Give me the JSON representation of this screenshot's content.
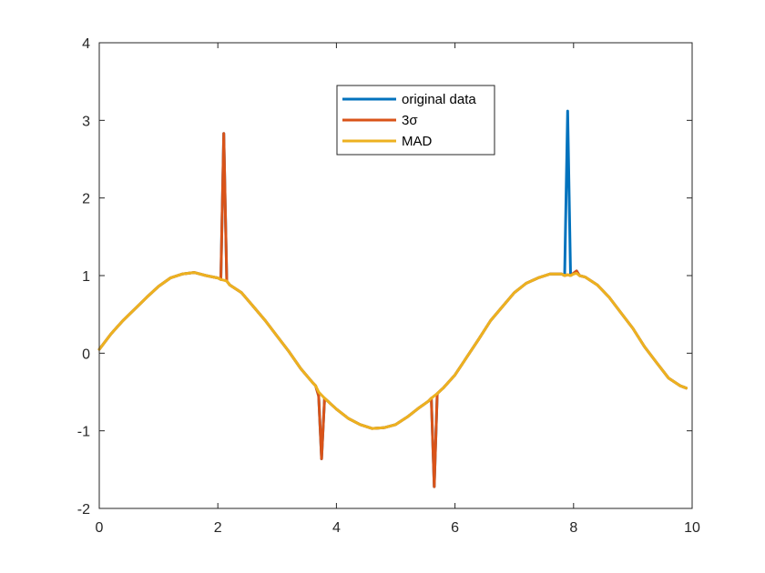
{
  "chart_data": {
    "type": "line",
    "title": "",
    "xlabel": "",
    "ylabel": "",
    "xlim": [
      0,
      10
    ],
    "ylim": [
      -2,
      4
    ],
    "xticks": [
      "0",
      "2",
      "4",
      "6",
      "8",
      "10"
    ],
    "yticks": [
      "-2",
      "-1",
      "0",
      "1",
      "2",
      "3",
      "4"
    ],
    "grid": false,
    "legend_position": "top-center",
    "x": [
      0,
      0.2,
      0.4,
      0.6,
      0.8,
      1.0,
      1.2,
      1.4,
      1.6,
      1.8,
      2.0,
      2.05,
      2.1,
      2.15,
      2.2,
      2.4,
      2.6,
      2.8,
      3.0,
      3.2,
      3.4,
      3.6,
      3.65,
      3.7,
      3.75,
      3.8,
      4.0,
      4.2,
      4.4,
      4.6,
      4.8,
      5.0,
      5.2,
      5.4,
      5.55,
      5.6,
      5.65,
      5.7,
      5.8,
      6.0,
      6.2,
      6.4,
      6.6,
      6.8,
      7.0,
      7.2,
      7.4,
      7.6,
      7.8,
      7.85,
      7.9,
      7.95,
      8.0,
      8.05,
      8.1,
      8.2,
      8.4,
      8.6,
      8.8,
      9.0,
      9.2,
      9.4,
      9.6,
      9.8,
      9.9
    ],
    "series": [
      {
        "name": "original data",
        "color": "#0072BD",
        "values": [
          0.05,
          0.25,
          0.42,
          0.57,
          0.72,
          0.86,
          0.97,
          1.02,
          1.04,
          1.0,
          0.97,
          0.95,
          2.83,
          0.93,
          0.88,
          0.78,
          0.6,
          0.42,
          0.22,
          0.02,
          -0.2,
          -0.38,
          -0.42,
          -0.55,
          -1.36,
          -0.58,
          -0.72,
          -0.84,
          -0.92,
          -0.97,
          -0.96,
          -0.92,
          -0.82,
          -0.7,
          -0.62,
          -0.58,
          -1.72,
          -0.52,
          -0.45,
          -0.28,
          -0.05,
          0.18,
          0.42,
          0.6,
          0.78,
          0.9,
          0.97,
          1.02,
          1.02,
          1.0,
          3.12,
          1.0,
          1.03,
          1.06,
          1.0,
          0.98,
          0.88,
          0.72,
          0.52,
          0.32,
          0.08,
          -0.12,
          -0.32,
          -0.42,
          -0.45
        ]
      },
      {
        "name": "3σ",
        "color": "#D95319",
        "values": [
          0.05,
          0.25,
          0.42,
          0.57,
          0.72,
          0.86,
          0.97,
          1.02,
          1.04,
          1.0,
          0.97,
          0.95,
          2.83,
          0.93,
          0.88,
          0.78,
          0.6,
          0.42,
          0.22,
          0.02,
          -0.2,
          -0.38,
          -0.42,
          -0.55,
          -1.36,
          -0.58,
          -0.72,
          -0.84,
          -0.92,
          -0.97,
          -0.96,
          -0.92,
          -0.82,
          -0.7,
          -0.62,
          -0.58,
          -1.72,
          -0.52,
          -0.45,
          -0.28,
          -0.05,
          0.18,
          0.42,
          0.6,
          0.78,
          0.9,
          0.97,
          1.02,
          1.02,
          1.0,
          1.01,
          1.0,
          1.03,
          1.06,
          1.0,
          0.98,
          0.88,
          0.72,
          0.52,
          0.32,
          0.08,
          -0.12,
          -0.32,
          -0.42,
          -0.45
        ]
      },
      {
        "name": "MAD",
        "color": "#EDB120",
        "values": [
          0.05,
          0.25,
          0.42,
          0.57,
          0.72,
          0.86,
          0.97,
          1.02,
          1.04,
          1.0,
          0.97,
          0.95,
          0.94,
          0.93,
          0.88,
          0.78,
          0.6,
          0.42,
          0.22,
          0.02,
          -0.2,
          -0.38,
          -0.42,
          -0.5,
          -0.54,
          -0.58,
          -0.72,
          -0.84,
          -0.92,
          -0.97,
          -0.96,
          -0.92,
          -0.82,
          -0.7,
          -0.62,
          -0.58,
          -0.55,
          -0.52,
          -0.45,
          -0.28,
          -0.05,
          0.18,
          0.42,
          0.6,
          0.78,
          0.9,
          0.97,
          1.02,
          1.02,
          1.0,
          1.01,
          1.0,
          1.02,
          1.03,
          1.0,
          0.98,
          0.88,
          0.72,
          0.52,
          0.32,
          0.08,
          -0.12,
          -0.32,
          -0.42,
          -0.45
        ]
      }
    ]
  }
}
